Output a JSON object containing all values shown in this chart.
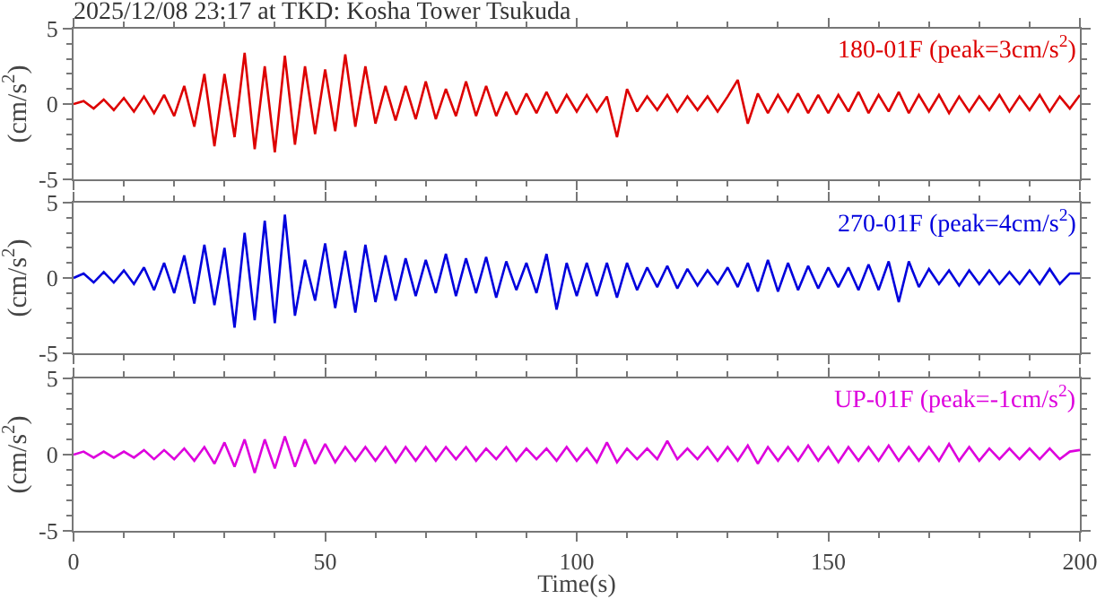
{
  "chart_data": [
    {
      "type": "line",
      "title": "2025/12/08 23:17 at TKD: Kosha Tower Tsukuda",
      "ylabel": "(cm/s$^{2}$)",
      "xlim": [
        0,
        200
      ],
      "xticks": [
        0,
        50,
        100,
        150,
        200
      ],
      "ylim": [
        -5,
        5
      ],
      "yticks": [
        -5,
        0,
        5
      ],
      "tick_labels": "y",
      "grid": false,
      "legend": false,
      "marker": "none",
      "line_style": "solid",
      "x": [
        0,
        2,
        4,
        6,
        8,
        10,
        12,
        14,
        16,
        18,
        20,
        22,
        24,
        26,
        28,
        30,
        32,
        34,
        36,
        38,
        40,
        42,
        44,
        46,
        48,
        50,
        52,
        54,
        56,
        58,
        60,
        62,
        64,
        66,
        68,
        70,
        72,
        74,
        76,
        78,
        80,
        82,
        84,
        86,
        88,
        90,
        92,
        94,
        96,
        98,
        100,
        102,
        104,
        106,
        108,
        110,
        112,
        114,
        116,
        118,
        120,
        122,
        124,
        126,
        128,
        130,
        132,
        134,
        136,
        138,
        140,
        142,
        144,
        146,
        148,
        150,
        152,
        154,
        156,
        158,
        160,
        162,
        164,
        166,
        168,
        170,
        172,
        174,
        176,
        178,
        180,
        182,
        184,
        186,
        188,
        190,
        192,
        194,
        196,
        198,
        200
      ],
      "series": [
        {
          "name": "180-01F (peak=3cm/s$^{2}$)",
          "color": "#dd0000",
          "values": [
            0,
            0.2,
            -0.3,
            0.3,
            -0.4,
            0.4,
            -0.5,
            0.5,
            -0.6,
            0.6,
            -0.8,
            1.2,
            -1.5,
            2.0,
            -2.8,
            2.0,
            -2.2,
            3.4,
            -3.0,
            2.5,
            -3.2,
            3.2,
            -2.7,
            2.5,
            -2.0,
            2.3,
            -1.8,
            3.3,
            -1.5,
            2.5,
            -1.3,
            1.2,
            -1.1,
            1.2,
            -1.0,
            1.5,
            -1.0,
            1.0,
            -0.8,
            1.5,
            -0.8,
            1.2,
            -0.8,
            0.8,
            -0.7,
            0.7,
            -0.6,
            0.8,
            -0.6,
            0.6,
            -0.5,
            0.6,
            -0.5,
            0.5,
            -2.2,
            1.0,
            -0.5,
            0.5,
            -0.4,
            0.6,
            -0.5,
            0.5,
            -0.4,
            0.5,
            -0.5,
            0.5,
            1.6,
            -1.3,
            0.7,
            -0.6,
            0.6,
            -0.5,
            0.7,
            -0.6,
            0.6,
            -0.6,
            0.6,
            -0.5,
            0.8,
            -0.6,
            0.6,
            -0.5,
            0.8,
            -0.6,
            0.6,
            -0.5,
            0.6,
            -0.6,
            0.5,
            -0.5,
            0.5,
            -0.4,
            0.6,
            -0.5,
            0.5,
            -0.4,
            0.6,
            -0.5,
            0.5,
            -0.3,
            0.6
          ]
        }
      ]
    },
    {
      "type": "line",
      "ylabel": "(cm/s$^{2}$)",
      "xlim": [
        0,
        200
      ],
      "xticks": [
        0,
        50,
        100,
        150,
        200
      ],
      "ylim": [
        -5,
        5
      ],
      "yticks": [
        -5,
        0,
        5
      ],
      "tick_labels": "y",
      "grid": false,
      "legend": false,
      "marker": "none",
      "line_style": "solid",
      "x": [
        0,
        2,
        4,
        6,
        8,
        10,
        12,
        14,
        16,
        18,
        20,
        22,
        24,
        26,
        28,
        30,
        32,
        34,
        36,
        38,
        40,
        42,
        44,
        46,
        48,
        50,
        52,
        54,
        56,
        58,
        60,
        62,
        64,
        66,
        68,
        70,
        72,
        74,
        76,
        78,
        80,
        82,
        84,
        86,
        88,
        90,
        92,
        94,
        96,
        98,
        100,
        102,
        104,
        106,
        108,
        110,
        112,
        114,
        116,
        118,
        120,
        122,
        124,
        126,
        128,
        130,
        132,
        134,
        136,
        138,
        140,
        142,
        144,
        146,
        148,
        150,
        152,
        154,
        156,
        158,
        160,
        162,
        164,
        166,
        168,
        170,
        172,
        174,
        176,
        178,
        180,
        182,
        184,
        186,
        188,
        190,
        192,
        194,
        196,
        198,
        200
      ],
      "series": [
        {
          "name": "270-01F (peak=4cm/s$^{2}$)",
          "color": "#0000dd",
          "values": [
            0,
            0.3,
            -0.3,
            0.4,
            -0.3,
            0.5,
            -0.4,
            0.7,
            -0.8,
            1.0,
            -1.0,
            1.5,
            -1.7,
            2.2,
            -1.8,
            2.0,
            -3.3,
            3.0,
            -2.8,
            3.8,
            -3.0,
            4.2,
            -2.5,
            1.2,
            -1.5,
            2.3,
            -2.0,
            1.8,
            -2.3,
            2.2,
            -1.6,
            1.5,
            -1.5,
            1.3,
            -1.2,
            1.2,
            -1.0,
            1.6,
            -1.2,
            1.3,
            -1.0,
            1.4,
            -1.3,
            1.1,
            -0.8,
            1.0,
            -1.0,
            1.6,
            -2.1,
            1.0,
            -1.2,
            1.0,
            -1.2,
            1.0,
            -1.3,
            1.0,
            -0.8,
            0.7,
            -0.6,
            0.8,
            -0.7,
            0.6,
            -0.5,
            0.5,
            -0.4,
            0.7,
            -0.6,
            1.0,
            -0.9,
            1.2,
            -0.9,
            1.0,
            -0.8,
            0.8,
            -0.7,
            0.7,
            -0.6,
            0.7,
            -0.8,
            0.9,
            -0.8,
            1.1,
            -1.6,
            1.1,
            -0.6,
            0.6,
            -0.4,
            0.5,
            -0.5,
            0.5,
            -0.4,
            0.5,
            -0.4,
            0.4,
            -0.4,
            0.5,
            -0.4,
            0.6,
            -0.4,
            0.3,
            0.3
          ]
        }
      ]
    },
    {
      "type": "line",
      "ylabel": "(cm/s$^{2}$)",
      "xlabel": "Time(s)",
      "xlim": [
        0,
        200
      ],
      "xticks": [
        0,
        50,
        100,
        150,
        200
      ],
      "ylim": [
        -5,
        5
      ],
      "yticks": [
        -5,
        0,
        5
      ],
      "grid": false,
      "legend": false,
      "marker": "none",
      "line_style": "solid",
      "x": [
        0,
        2,
        4,
        6,
        8,
        10,
        12,
        14,
        16,
        18,
        20,
        22,
        24,
        26,
        28,
        30,
        32,
        34,
        36,
        38,
        40,
        42,
        44,
        46,
        48,
        50,
        52,
        54,
        56,
        58,
        60,
        62,
        64,
        66,
        68,
        70,
        72,
        74,
        76,
        78,
        80,
        82,
        84,
        86,
        88,
        90,
        92,
        94,
        96,
        98,
        100,
        102,
        104,
        106,
        108,
        110,
        112,
        114,
        116,
        118,
        120,
        122,
        124,
        126,
        128,
        130,
        132,
        134,
        136,
        138,
        140,
        142,
        144,
        146,
        148,
        150,
        152,
        154,
        156,
        158,
        160,
        162,
        164,
        166,
        168,
        170,
        172,
        174,
        176,
        178,
        180,
        182,
        184,
        186,
        188,
        190,
        192,
        194,
        196,
        198,
        200
      ],
      "series": [
        {
          "name": "UP-01F (peak=-1cm/s$^{2}$)",
          "color": "#dd00dd",
          "values": [
            0,
            0.2,
            -0.2,
            0.2,
            -0.2,
            0.2,
            -0.2,
            0.3,
            -0.3,
            0.3,
            -0.3,
            0.4,
            -0.4,
            0.5,
            -0.6,
            0.8,
            -0.8,
            1.0,
            -1.2,
            1.0,
            -0.9,
            1.2,
            -0.8,
            1.0,
            -0.6,
            0.7,
            -0.5,
            0.5,
            -0.4,
            0.5,
            -0.4,
            0.5,
            -0.5,
            0.5,
            -0.4,
            0.5,
            -0.4,
            0.5,
            -0.3,
            0.5,
            -0.4,
            0.4,
            -0.3,
            0.5,
            -0.4,
            0.4,
            -0.3,
            0.4,
            -0.4,
            0.5,
            -0.4,
            0.4,
            -0.5,
            0.8,
            -0.5,
            0.4,
            -0.3,
            0.4,
            -0.3,
            0.9,
            -0.3,
            0.4,
            -0.3,
            0.5,
            -0.4,
            0.5,
            -0.4,
            0.6,
            -0.6,
            0.5,
            -0.4,
            0.5,
            -0.4,
            0.6,
            -0.4,
            0.5,
            -0.5,
            0.5,
            -0.4,
            0.5,
            -0.4,
            0.6,
            -0.4,
            0.5,
            -0.4,
            0.5,
            -0.4,
            0.7,
            -0.4,
            0.5,
            -0.4,
            0.4,
            -0.3,
            0.4,
            -0.3,
            0.4,
            -0.3,
            0.4,
            -0.3,
            0.2,
            0.3
          ]
        }
      ]
    }
  ]
}
